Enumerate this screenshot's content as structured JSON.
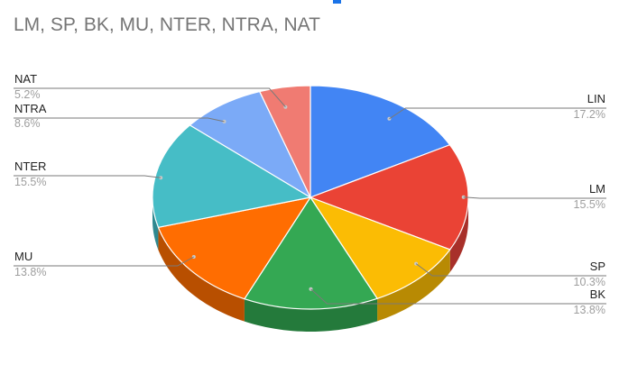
{
  "chart_data": {
    "type": "pie",
    "style": "3d",
    "title": "LM, SP, BK, MU, NTER, NTRA, NAT",
    "legend": "labels-outside",
    "slices": [
      {
        "label": "LIN",
        "percent_label": "17.2%",
        "value": 17.2,
        "color": "#4285F4",
        "side_color": "#2f63b8"
      },
      {
        "label": "LM",
        "percent_label": "15.5%",
        "value": 15.5,
        "color": "#EA4335",
        "side_color": "#a8302a"
      },
      {
        "label": "SP",
        "percent_label": "10.3%",
        "value": 10.3,
        "color": "#FBBC04",
        "side_color": "#b88a03"
      },
      {
        "label": "BK",
        "percent_label": "13.8%",
        "value": 13.8,
        "color": "#34A853",
        "side_color": "#247a3b"
      },
      {
        "label": "MU",
        "percent_label": "13.8%",
        "value": 13.8,
        "color": "#FF6D01",
        "side_color": "#b84f00"
      },
      {
        "label": "NTER",
        "percent_label": "15.5%",
        "value": 15.5,
        "color": "#46BDC6",
        "side_color": "#2f8990"
      },
      {
        "label": "NTRA",
        "percent_label": "8.6%",
        "value": 8.6,
        "color": "#7BAAF7",
        "side_color": "#5a80bd"
      },
      {
        "label": "NAT",
        "percent_label": "5.2%",
        "value": 5.2,
        "color": "#F07B72",
        "side_color": "#b85a53"
      }
    ]
  },
  "colors": {
    "title": "#757575",
    "label_name": "#222222",
    "label_percent": "#9e9e9e",
    "leader": "#7a7a7a",
    "accent": "#1a73e8"
  }
}
